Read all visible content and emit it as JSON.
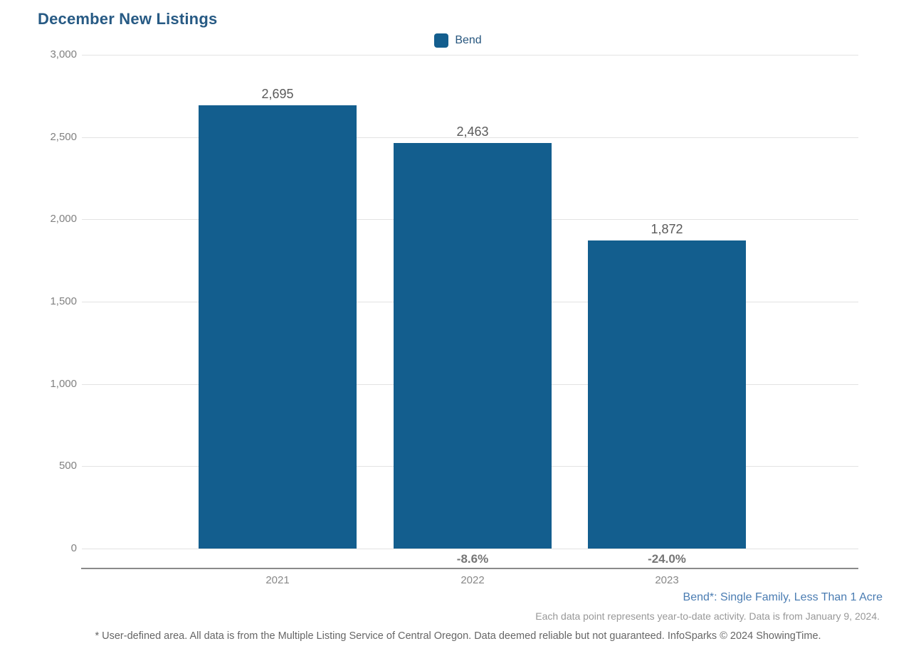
{
  "title": "December New Listings",
  "legend": {
    "label": "Bend",
    "color": "#135E8E"
  },
  "chart_data": {
    "type": "bar",
    "title": "December New Listings",
    "categories": [
      "2021",
      "2022",
      "2023"
    ],
    "series": [
      {
        "name": "Bend",
        "values": [
          2695,
          2463,
          1872
        ]
      }
    ],
    "value_labels": [
      "2,695",
      "2,463",
      "1,872"
    ],
    "pct_change_labels": [
      "",
      "-8.6%",
      "-24.0%"
    ],
    "ylim": [
      0,
      3000
    ],
    "ytick_values": [
      0,
      500,
      1000,
      1500,
      2000,
      2500,
      3000
    ],
    "ytick_labels": [
      "0",
      "500",
      "1,000",
      "1,500",
      "2,000",
      "2,500",
      "3,000"
    ],
    "grid": "horizontal",
    "legend_position": "top-center",
    "bar_color": "#135E8E"
  },
  "footer": {
    "series_note": "Bend*: Single Family, Less Than 1 Acre",
    "data_note": "Each data point represents year-to-date activity. Data is from January 9, 2024.",
    "disclaimer": "* User-defined area. All data is from the Multiple Listing Service of Central Oregon. Data deemed reliable but not guaranteed. InfoSparks © 2024 ShowingTime."
  },
  "colors": {
    "title": "#275A84",
    "bar": "#135E8E",
    "gridline": "#e3e3e3",
    "axis_line": "#8a8a8a",
    "series_note": "#4A7CB2"
  }
}
